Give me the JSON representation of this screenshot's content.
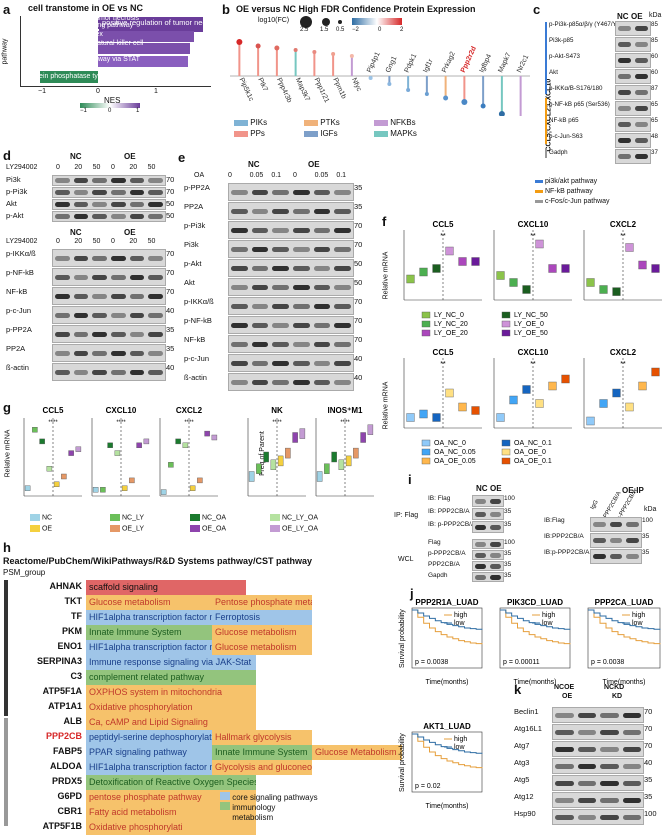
{
  "panels": {
    "a": {
      "letter": "a",
      "title": "cell transtome in OE vs NC",
      "ylabel": "pathway",
      "xlabel": "NES",
      "legend_title": "NES",
      "legend_ticks": [
        "−1",
        "0",
        "1"
      ],
      "x_ticks": [
        "−1",
        "0",
        "1"
      ]
    },
    "b": {
      "letter": "b",
      "title": "OE versus NC High FDR Confidence Protein Expression",
      "size_legend_title": "log10(FC)",
      "size_ticks": [
        "2.5",
        "1.5",
        "0.5"
      ],
      "color_ticks": [
        "−2",
        "0",
        "2"
      ],
      "categories": [
        {
          "label": "PIKs",
          "color": "#7fb3d5"
        },
        {
          "label": "PTKs",
          "color": "#f0b27a"
        },
        {
          "label": "NFKBs",
          "color": "#c39bd3"
        },
        {
          "label": "PPs",
          "color": "#f1948a"
        },
        {
          "label": "IGFs",
          "color": "#7d9fc9"
        },
        {
          "label": "MAPKs",
          "color": "#76c7c0"
        }
      ],
      "genes": [
        "Pip5k1c",
        "Ptk7",
        "Ppp4r3b",
        "Map3k7",
        "Ppp1r21",
        "Ppm1b",
        "Nfyc",
        "Pip4p1",
        "Gng1",
        "Pdpk1",
        "Igf1r",
        "Prkag2",
        "Ppp2r2d",
        "Igfbp4",
        "Mapk7",
        "Nr2c1"
      ],
      "highlight_gene": "Ppp2r2d"
    },
    "c": {
      "letter": "c",
      "lane_labels": [
        "NC",
        "OE"
      ],
      "kda_label": "kDa",
      "side_label": "CCL5;CXCL2;CXCL10",
      "rows": [
        {
          "name": "p-Pi3k-p85α/β/γ (Y467/Y464/Y199)",
          "kda": "85"
        },
        {
          "name": "Pi3k-p85",
          "kda": "85"
        },
        {
          "name": "p-Akt-S473",
          "kda": "60"
        },
        {
          "name": "Akt",
          "kda": "60"
        },
        {
          "name": "p-IKKα/B-S176/180",
          "kda": "87"
        },
        {
          "name": "p-NF-kB p65 (Ser536)",
          "kda": "65"
        },
        {
          "name": "NF-kB p65",
          "kda": "65"
        },
        {
          "name": "p-c-Jun-S63",
          "kda": "48"
        },
        {
          "name": "Gadph",
          "kda": "37"
        }
      ],
      "legend": [
        {
          "label": "pi3k/akt pathway",
          "color": "#3a7bd5"
        },
        {
          "label": "NF-kB pathway",
          "color": "#f39c12"
        },
        {
          "label": "c-Fos/c-Jun pathway",
          "color": "#999999"
        }
      ]
    },
    "d": {
      "letter": "d",
      "groups": [
        "NC",
        "OE"
      ],
      "treatment": "LY294002",
      "doses": [
        "0",
        "20",
        "50",
        "0",
        "20",
        "50"
      ],
      "top_rows": [
        {
          "name": "Pi3k",
          "kda": "70"
        },
        {
          "name": "p-Pi3k",
          "kda": "70"
        },
        {
          "name": "Akt",
          "kda": "50"
        },
        {
          "name": "p-Akt",
          "kda": "50"
        }
      ],
      "bottom_rows": [
        {
          "name": "p-IKKα/ß",
          "kda": "70"
        },
        {
          "name": "p-NF-kB",
          "kda": "70"
        },
        {
          "name": "NF-kB",
          "kda": "70"
        },
        {
          "name": "p-c-Jun",
          "kda": "40"
        },
        {
          "name": "p-PP2A",
          "kda": "35"
        },
        {
          "name": "PP2A",
          "kda": "35"
        },
        {
          "name": "ß-actin",
          "kda": "40"
        }
      ]
    },
    "e": {
      "letter": "e",
      "groups": [
        "NC",
        "OE"
      ],
      "treatment": "OA",
      "doses": [
        "0",
        "0.05",
        "0.1",
        "0",
        "0.05",
        "0.1"
      ],
      "rows": [
        {
          "name": "p-PP2A",
          "kda": "35"
        },
        {
          "name": "PP2A",
          "kda": "35"
        },
        {
          "name": "p-Pi3k",
          "kda": "70"
        },
        {
          "name": "Pi3k",
          "kda": "70"
        },
        {
          "name": "p-Akt",
          "kda": "50"
        },
        {
          "name": "Akt",
          "kda": "50"
        },
        {
          "name": "p-IKKα/ß",
          "kda": "70"
        },
        {
          "name": "p-NF-kB",
          "kda": "70"
        },
        {
          "name": "NF-kB",
          "kda": "70"
        },
        {
          "name": "p-c-Jun",
          "kda": "40"
        },
        {
          "name": "ß-actin",
          "kda": "40"
        }
      ]
    },
    "f": {
      "letter": "f",
      "ylabel": "Relative mRNA",
      "top_titles": [
        "CCL5",
        "CXCL10",
        "CXCL2"
      ],
      "bottom_titles": [
        "CCL5",
        "CXCL10",
        "CXCL2"
      ],
      "top_legend": [
        {
          "label": "LY_NC_0",
          "color": "#8bc34a"
        },
        {
          "label": "LY_NC_20",
          "color": "#4caf50"
        },
        {
          "label": "LY_NC_50",
          "color": "#1b5e20"
        },
        {
          "label": "LY_OE_0",
          "color": "#ce93d8"
        },
        {
          "label": "LY_OE_20",
          "color": "#ab47bc"
        },
        {
          "label": "LY_OE_50",
          "color": "#6a1b9a"
        }
      ],
      "bottom_legend": [
        {
          "label": "OA_NC_0",
          "color": "#90caf9"
        },
        {
          "label": "OA_NC_0.05",
          "color": "#42a5f5"
        },
        {
          "label": "OA_NC_0.1",
          "color": "#1565c0"
        },
        {
          "label": "OA_OE_0",
          "color": "#ffe082"
        },
        {
          "label": "OA_OE_0.05",
          "color": "#ffb74d"
        },
        {
          "label": "OA_OE_0.1",
          "color": "#e65100"
        }
      ]
    },
    "g": {
      "letter": "g",
      "titles": [
        "CCL5",
        "CXCL10",
        "CXCL2",
        "NK",
        "INOS⁺M1"
      ],
      "ylabel_left": "Relative mRNA",
      "ylabel_right": "Freq of Parent",
      "legend": [
        {
          "label": "NC",
          "color": "#9fd3e6"
        },
        {
          "label": "NC_LY",
          "color": "#6bbf59"
        },
        {
          "label": "NC_OA",
          "color": "#1b7a2e"
        },
        {
          "label": "NC_LY_OA",
          "color": "#b5e2a0"
        },
        {
          "label": "OE",
          "color": "#f4d03f"
        },
        {
          "label": "OE_LY",
          "color": "#e59866"
        },
        {
          "label": "OE_OA",
          "color": "#8e44ad"
        },
        {
          "label": "OE_LY_OA",
          "color": "#c39bd3"
        }
      ]
    },
    "h": {
      "letter": "h",
      "title": "Reactome/PubChem/WikiPathways/R&D Systems pathway/CST pathway",
      "subtitle": "PSM_group",
      "legend": [
        {
          "label": "core signaling pathways",
          "color": "#9fc5e8"
        },
        {
          "label": "immunology",
          "color": "#93c47d"
        },
        {
          "label": "metabolism",
          "color": "#f6c26b"
        }
      ],
      "rows": [
        {
          "gene": "AHNAK",
          "a": "scaffold signaling",
          "b": "",
          "c": ""
        },
        {
          "gene": "TKT",
          "a": "Glucose metabolism",
          "b": "Pentose phosphate metabolism",
          "c": ""
        },
        {
          "gene": "TF",
          "a": "HIF1alpha transcription factor network",
          "b": "Ferroptosis",
          "c": ""
        },
        {
          "gene": "PKM",
          "a": "Innate Immune System",
          "b": "Glucose metabolism",
          "c": ""
        },
        {
          "gene": "ENO1",
          "a": "HIF1alpha transcription factor network",
          "b": "Glucose metabolism",
          "c": ""
        },
        {
          "gene": "SERPINA3",
          "a": "Immune response signaling via JAK-Stat",
          "b": "",
          "c": ""
        },
        {
          "gene": "C3",
          "a": "complement related pathway",
          "b": "",
          "c": ""
        },
        {
          "gene": "ATP5F1A",
          "a": "OXPHOS system in mitochondria",
          "b": "",
          "c": ""
        },
        {
          "gene": "ATP1A1",
          "a": "Oxidative phosphorylation",
          "b": "",
          "c": ""
        },
        {
          "gene": "ALB",
          "a": "Ca, cAMP and Lipid Signaling",
          "b": "",
          "c": ""
        },
        {
          "gene": "PPP2CB",
          "a": "peptidyl-serine dephosphorylation",
          "b": "Hallmark glycolysis",
          "c": ""
        },
        {
          "gene": "FABP5",
          "a": "PPAR signaling pathway",
          "b": "Innate Immune System",
          "c": "Glucose Metabolism"
        },
        {
          "gene": "ALDOA",
          "a": "HIF1alpha transcription factor network",
          "b": "Glycolysis and gluconeogenesis",
          "c": ""
        },
        {
          "gene": "PRDX5",
          "a": "Detoxification of Reactive Oxygen Species",
          "b": "",
          "c": ""
        },
        {
          "gene": "G6PD",
          "a": "pentose phosphate pathway",
          "b": "",
          "c": ""
        },
        {
          "gene": "CBR1",
          "a": "Fatty acid metabolism",
          "b": "",
          "c": ""
        },
        {
          "gene": "ATP5F1B",
          "a": "Oxidative phosphorylati",
          "b": "",
          "c": ""
        }
      ]
    },
    "i": {
      "letter": "i",
      "lanes": [
        "NC",
        "OE"
      ],
      "ip_label": "IP: Flag",
      "wcl_label": "WCL",
      "ip_rows": [
        {
          "name": "IB: Flag",
          "kda": "100"
        },
        {
          "name": "IB: PPP2CB/A",
          "kda": "35"
        },
        {
          "name": "IB: p-PPP2CB/A",
          "kda": "35"
        }
      ],
      "wcl_rows": [
        {
          "name": "Flag",
          "kda": "100"
        },
        {
          "name": "p-PPP2CB/A",
          "kda": "35"
        },
        {
          "name": "PPP2CB/A",
          "kda": "35"
        },
        {
          "name": "Gapdh",
          "kda": "35"
        }
      ],
      "right_title": "OE:IP",
      "right_lanes": [
        "IgG",
        "PPP2CB/A",
        "p-PPP2CB/A"
      ],
      "right_kda": "kDa",
      "right_rows": [
        {
          "name": "IB:Flag",
          "kda": "100"
        },
        {
          "name": "IB:PPP2CB/A",
          "kda": "35"
        },
        {
          "name": "IB:p-PPP2CB/A",
          "kda": "35"
        }
      ]
    },
    "j": {
      "letter": "j",
      "ylabel": "Survival probability",
      "xlabel": "Time(months)",
      "plots": [
        {
          "title": "PPP2R1A_LUAD",
          "p": "p = 0.0038"
        },
        {
          "title": "PIK3CD_LUAD",
          "p": "p = 0.00011"
        },
        {
          "title": "PPP2CA_LUAD",
          "p": "p = 0.0038"
        },
        {
          "title": "AKT1_LUAD",
          "p": "p = 0.02"
        }
      ],
      "legend": [
        {
          "label": "high",
          "color": "#e69f3c"
        },
        {
          "label": "low",
          "color": "#2e6da4"
        }
      ]
    },
    "k": {
      "letter": "k",
      "groups": [
        [
          "NCOE",
          "OE"
        ],
        [
          "NCKD",
          "KD"
        ]
      ],
      "rows": [
        {
          "name": "Beclin1",
          "kda": "70"
        },
        {
          "name": "Atg16L1",
          "kda": "70"
        },
        {
          "name": "Atg7",
          "kda": "70"
        },
        {
          "name": "Atg3",
          "kda": "40"
        },
        {
          "name": "Atg5",
          "kda": "35"
        },
        {
          "name": "Atg12",
          "kda": "35"
        },
        {
          "name": "Hsp90",
          "kda": "100"
        }
      ]
    }
  }
}
